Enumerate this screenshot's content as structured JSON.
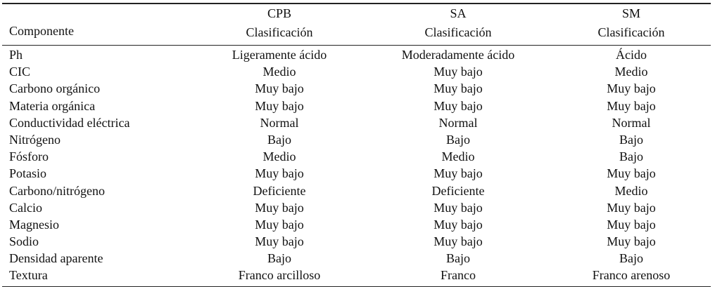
{
  "header": {
    "col0": "Componente",
    "cols": [
      {
        "group": "CPB",
        "label": "Clasificación"
      },
      {
        "group": "SA",
        "label": "Clasificación"
      },
      {
        "group": "SM",
        "label": "Clasificación"
      }
    ]
  },
  "rows": [
    [
      "Ph",
      "Ligeramente ácido",
      "Moderadamente ácido",
      "Ácido"
    ],
    [
      "CIC",
      "Medio",
      "Muy bajo",
      "Medio"
    ],
    [
      "Carbono orgánico",
      "Muy bajo",
      "Muy bajo",
      "Muy bajo"
    ],
    [
      "Materia orgánica",
      "Muy bajo",
      "Muy bajo",
      "Muy bajo"
    ],
    [
      "Conductividad eléctrica",
      "Normal",
      "Normal",
      "Normal"
    ],
    [
      "Nitrógeno",
      "Bajo",
      "Bajo",
      "Bajo"
    ],
    [
      "Fósforo",
      "Medio",
      "Medio",
      "Bajo"
    ],
    [
      "Potasio",
      "Muy bajo",
      "Muy bajo",
      "Muy bajo"
    ],
    [
      "Carbono/nitrógeno",
      "Deficiente",
      "Deficiente",
      "Medio"
    ],
    [
      "Calcio",
      "Muy bajo",
      "Muy bajo",
      "Muy bajo"
    ],
    [
      "Magnesio",
      "Muy bajo",
      "Muy bajo",
      "Muy bajo"
    ],
    [
      "Sodio",
      "Muy bajo",
      "Muy bajo",
      "Muy bajo"
    ],
    [
      "Densidad aparente",
      "Bajo",
      "Bajo",
      "Bajo"
    ],
    [
      "Textura",
      "Franco arcilloso",
      "Franco",
      "Franco arenoso"
    ]
  ]
}
